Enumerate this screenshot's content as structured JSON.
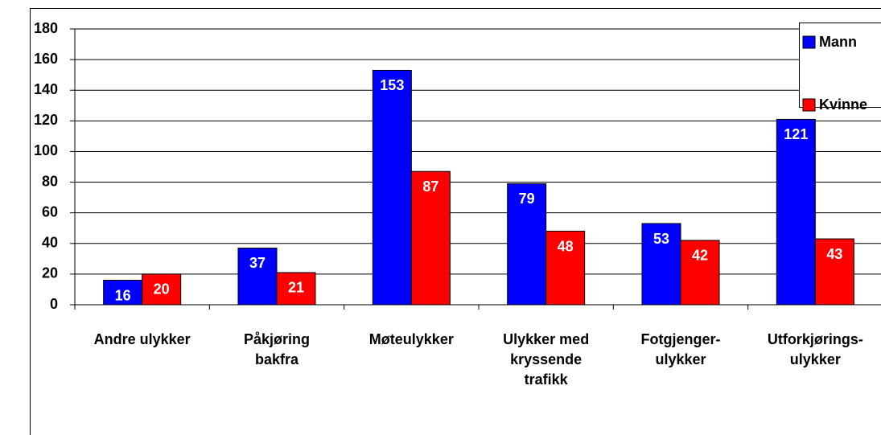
{
  "chart_data": {
    "type": "bar",
    "categories": [
      [
        "Andre ulykker"
      ],
      [
        "Påkjøring",
        "bakfra"
      ],
      [
        "Møteulykker"
      ],
      [
        "Ulykker med",
        "kryssende",
        "trafikk"
      ],
      [
        "Fotgjenger-",
        "ulykker"
      ],
      [
        "Utforkjørings-",
        "ulykker"
      ]
    ],
    "series": [
      {
        "name": "Mann",
        "color": "#0000ff",
        "values": [
          16,
          37,
          153,
          79,
          53,
          121
        ]
      },
      {
        "name": "Kvinne",
        "color": "#ff0000",
        "values": [
          20,
          21,
          87,
          48,
          42,
          43
        ]
      }
    ],
    "ylim": [
      0,
      180
    ],
    "yticks": [
      0,
      20,
      40,
      60,
      80,
      100,
      120,
      140,
      160,
      180
    ],
    "grid": true,
    "legend": "upper right"
  }
}
